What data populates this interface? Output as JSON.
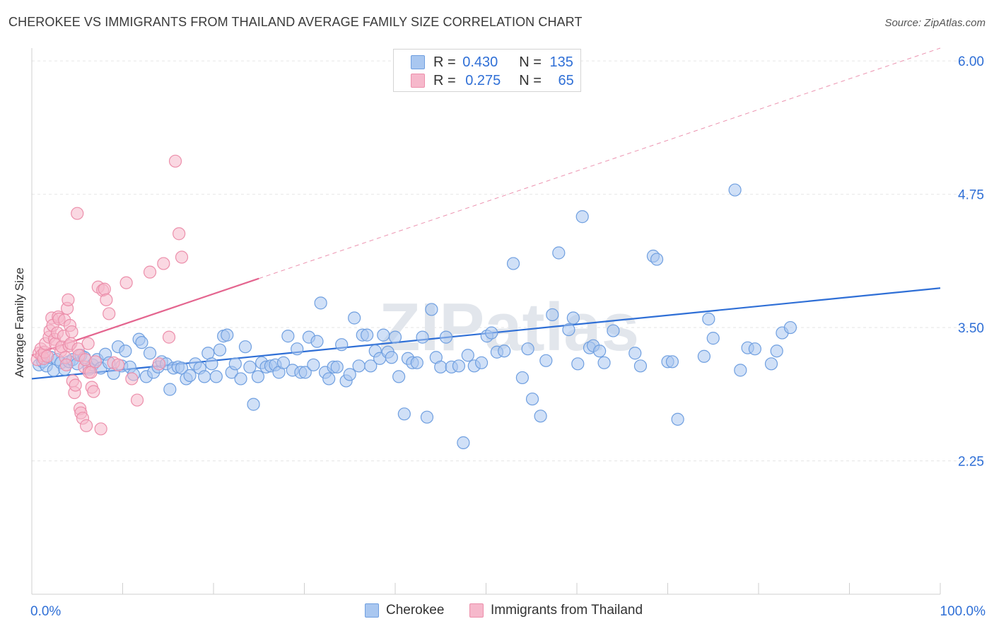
{
  "header": {
    "title": "CHEROKEE VS IMMIGRANTS FROM THAILAND AVERAGE FAMILY SIZE CORRELATION CHART",
    "source": "Source: ZipAtlas.com"
  },
  "watermark": "ZIPatlas",
  "legend": {
    "rows": [
      {
        "r_label": "R =",
        "r_value": "0.430",
        "n_label": "N =",
        "n_value": "135"
      },
      {
        "r_label": "R =",
        "r_value": "0.275",
        "n_label": "N =",
        "n_value": "65"
      }
    ]
  },
  "colors": {
    "cherokee_fill": "#a9c7f0",
    "cherokee_stroke": "#6f9fe0",
    "cherokee_line": "#2f6fd6",
    "thai_fill": "#f6b8cb",
    "thai_stroke": "#ec8fab",
    "thai_line": "#e4658f",
    "grid": "#e6e6e6",
    "tick_label": "#2f6fd6"
  },
  "chart_data": {
    "type": "scatter",
    "title": "CHEROKEE VS IMMIGRANTS FROM THAILAND AVERAGE FAMILY SIZE CORRELATION CHART",
    "xlabel": "",
    "ylabel": "Average Family Size",
    "xlim": [
      0,
      100
    ],
    "ylim": [
      1.0,
      6.12
    ],
    "x_tick_labels": [
      "0.0%",
      "100.0%"
    ],
    "y_ticks": [
      2.25,
      3.5,
      4.75,
      6.0
    ],
    "y_tick_labels": [
      "2.25",
      "3.50",
      "4.75",
      "6.00"
    ],
    "grid": true,
    "legend_position": "bottom",
    "series": [
      {
        "name": "Cherokee",
        "trend": {
          "x": [
            0,
            100
          ],
          "y": [
            3.02,
            3.87
          ],
          "style": "solid"
        },
        "points": [
          [
            0.8,
            3.15
          ],
          [
            1.2,
            3.18
          ],
          [
            1.6,
            3.14
          ],
          [
            2.1,
            3.22
          ],
          [
            2.4,
            3.1
          ],
          [
            2.8,
            3.2
          ],
          [
            3.2,
            3.17
          ],
          [
            3.6,
            3.11
          ],
          [
            4.1,
            3.18
          ],
          [
            4.5,
            3.2
          ],
          [
            5.0,
            3.16
          ],
          [
            5.4,
            3.24
          ],
          [
            5.8,
            3.22
          ],
          [
            6.3,
            3.11
          ],
          [
            6.7,
            3.15
          ],
          [
            7.2,
            3.2
          ],
          [
            7.6,
            3.12
          ],
          [
            8.1,
            3.25
          ],
          [
            8.5,
            3.17
          ],
          [
            9.0,
            3.07
          ],
          [
            9.5,
            3.32
          ],
          [
            9.9,
            3.14
          ],
          [
            10.3,
            3.28
          ],
          [
            10.8,
            3.13
          ],
          [
            11.2,
            3.06
          ],
          [
            11.8,
            3.39
          ],
          [
            12.1,
            3.36
          ],
          [
            12.6,
            3.04
          ],
          [
            13.0,
            3.26
          ],
          [
            13.4,
            3.08
          ],
          [
            13.9,
            3.13
          ],
          [
            14.3,
            3.18
          ],
          [
            14.8,
            3.16
          ],
          [
            15.2,
            2.92
          ],
          [
            15.6,
            3.12
          ],
          [
            16.1,
            3.13
          ],
          [
            16.5,
            3.12
          ],
          [
            17.0,
            3.02
          ],
          [
            17.4,
            3.05
          ],
          [
            18.0,
            3.16
          ],
          [
            18.5,
            3.12
          ],
          [
            19.0,
            3.04
          ],
          [
            19.4,
            3.26
          ],
          [
            19.8,
            3.16
          ],
          [
            20.3,
            3.04
          ],
          [
            20.7,
            3.29
          ],
          [
            21.1,
            3.42
          ],
          [
            21.5,
            3.43
          ],
          [
            22.0,
            3.08
          ],
          [
            22.4,
            3.16
          ],
          [
            23.0,
            3.02
          ],
          [
            23.5,
            3.32
          ],
          [
            24.0,
            3.13
          ],
          [
            24.4,
            2.78
          ],
          [
            24.9,
            3.04
          ],
          [
            25.3,
            3.17
          ],
          [
            25.8,
            3.13
          ],
          [
            26.3,
            3.14
          ],
          [
            26.8,
            3.15
          ],
          [
            27.2,
            3.08
          ],
          [
            27.7,
            3.17
          ],
          [
            28.2,
            3.42
          ],
          [
            28.7,
            3.1
          ],
          [
            29.2,
            3.3
          ],
          [
            29.6,
            3.08
          ],
          [
            30.1,
            3.08
          ],
          [
            30.5,
            3.41
          ],
          [
            31.0,
            3.15
          ],
          [
            31.4,
            3.37
          ],
          [
            31.8,
            3.73
          ],
          [
            32.3,
            3.08
          ],
          [
            32.7,
            3.02
          ],
          [
            33.2,
            3.13
          ],
          [
            33.6,
            3.13
          ],
          [
            34.1,
            3.34
          ],
          [
            34.6,
            3.0
          ],
          [
            35.0,
            3.06
          ],
          [
            35.5,
            3.59
          ],
          [
            36.0,
            3.14
          ],
          [
            36.4,
            3.43
          ],
          [
            36.9,
            3.43
          ],
          [
            37.3,
            3.14
          ],
          [
            37.8,
            3.28
          ],
          [
            38.3,
            3.21
          ],
          [
            38.7,
            3.43
          ],
          [
            39.2,
            3.27
          ],
          [
            39.6,
            3.22
          ],
          [
            40.0,
            3.41
          ],
          [
            40.4,
            3.04
          ],
          [
            41.0,
            2.69
          ],
          [
            41.4,
            3.21
          ],
          [
            41.9,
            3.17
          ],
          [
            42.4,
            3.17
          ],
          [
            43.0,
            3.41
          ],
          [
            43.5,
            2.66
          ],
          [
            44.0,
            3.67
          ],
          [
            44.5,
            3.22
          ],
          [
            45.0,
            3.13
          ],
          [
            45.6,
            3.41
          ],
          [
            46.2,
            3.13
          ],
          [
            47.0,
            3.14
          ],
          [
            47.5,
            2.42
          ],
          [
            48.0,
            3.24
          ],
          [
            48.7,
            3.14
          ],
          [
            49.5,
            3.17
          ],
          [
            50.1,
            3.42
          ],
          [
            50.6,
            3.45
          ],
          [
            51.2,
            3.27
          ],
          [
            52.0,
            3.28
          ],
          [
            53.0,
            4.1
          ],
          [
            54.0,
            3.03
          ],
          [
            54.6,
            3.3
          ],
          [
            55.1,
            2.83
          ],
          [
            56.0,
            2.67
          ],
          [
            56.6,
            3.19
          ],
          [
            57.3,
            3.62
          ],
          [
            58.0,
            4.2
          ],
          [
            59.1,
            3.48
          ],
          [
            59.6,
            3.59
          ],
          [
            60.1,
            3.16
          ],
          [
            60.6,
            4.54
          ],
          [
            61.4,
            3.31
          ],
          [
            61.8,
            3.33
          ],
          [
            62.5,
            3.28
          ],
          [
            63.0,
            3.17
          ],
          [
            64.0,
            3.47
          ],
          [
            66.4,
            3.26
          ],
          [
            67.0,
            3.14
          ],
          [
            68.4,
            4.17
          ],
          [
            68.8,
            4.14
          ],
          [
            70.0,
            3.18
          ],
          [
            70.5,
            3.18
          ],
          [
            71.1,
            2.64
          ],
          [
            74.0,
            3.23
          ],
          [
            74.5,
            3.58
          ],
          [
            75.0,
            3.4
          ],
          [
            77.4,
            4.79
          ],
          [
            78.0,
            3.1
          ],
          [
            78.8,
            3.31
          ],
          [
            79.6,
            3.3
          ],
          [
            81.4,
            3.16
          ],
          [
            82.0,
            3.28
          ],
          [
            82.6,
            3.45
          ],
          [
            83.5,
            3.5
          ]
        ]
      },
      {
        "name": "Immigrants from Thailand",
        "trend": {
          "x": [
            0,
            25
          ],
          "y": [
            3.24,
            3.96
          ],
          "style": "solid"
        },
        "trend_extension": {
          "x": [
            25,
            100
          ],
          "y": [
            3.96,
            6.12
          ],
          "style": "dashed"
        },
        "points": [
          [
            0.6,
            3.2
          ],
          [
            0.8,
            3.26
          ],
          [
            1.0,
            3.3
          ],
          [
            1.1,
            3.24
          ],
          [
            1.3,
            3.21
          ],
          [
            1.4,
            3.27
          ],
          [
            1.5,
            3.35
          ],
          [
            1.7,
            3.23
          ],
          [
            1.9,
            3.41
          ],
          [
            2.0,
            3.47
          ],
          [
            2.2,
            3.59
          ],
          [
            2.3,
            3.52
          ],
          [
            2.5,
            3.39
          ],
          [
            2.6,
            3.35
          ],
          [
            2.8,
            3.45
          ],
          [
            2.9,
            3.6
          ],
          [
            3.0,
            3.58
          ],
          [
            3.2,
            3.28
          ],
          [
            3.3,
            3.32
          ],
          [
            3.5,
            3.42
          ],
          [
            3.6,
            3.57
          ],
          [
            3.7,
            3.22
          ],
          [
            3.8,
            3.15
          ],
          [
            3.9,
            3.68
          ],
          [
            4.0,
            3.76
          ],
          [
            4.1,
            3.33
          ],
          [
            4.2,
            3.52
          ],
          [
            4.3,
            3.35
          ],
          [
            4.4,
            3.46
          ],
          [
            4.5,
            3.0
          ],
          [
            4.7,
            2.89
          ],
          [
            4.8,
            2.96
          ],
          [
            5.0,
            4.57
          ],
          [
            5.1,
            3.3
          ],
          [
            5.2,
            3.24
          ],
          [
            5.3,
            2.74
          ],
          [
            5.4,
            2.7
          ],
          [
            5.6,
            2.65
          ],
          [
            5.8,
            3.13
          ],
          [
            5.9,
            3.2
          ],
          [
            6.0,
            2.58
          ],
          [
            6.2,
            3.35
          ],
          [
            6.3,
            3.08
          ],
          [
            6.5,
            3.08
          ],
          [
            6.6,
            2.94
          ],
          [
            6.8,
            2.9
          ],
          [
            7.0,
            3.18
          ],
          [
            7.3,
            3.88
          ],
          [
            7.6,
            2.55
          ],
          [
            7.8,
            3.85
          ],
          [
            8.0,
            3.86
          ],
          [
            8.2,
            3.76
          ],
          [
            8.5,
            3.63
          ],
          [
            9.0,
            3.17
          ],
          [
            9.5,
            3.15
          ],
          [
            10.4,
            3.92
          ],
          [
            11.0,
            3.02
          ],
          [
            11.6,
            2.82
          ],
          [
            13.0,
            4.02
          ],
          [
            14.0,
            3.16
          ],
          [
            14.5,
            4.1
          ],
          [
            15.1,
            3.41
          ],
          [
            15.8,
            5.06
          ],
          [
            16.2,
            4.38
          ],
          [
            16.5,
            4.16
          ]
        ]
      }
    ]
  },
  "bottom_legend": {
    "items": [
      {
        "label": "Cherokee"
      },
      {
        "label": "Immigrants from Thailand"
      }
    ]
  }
}
